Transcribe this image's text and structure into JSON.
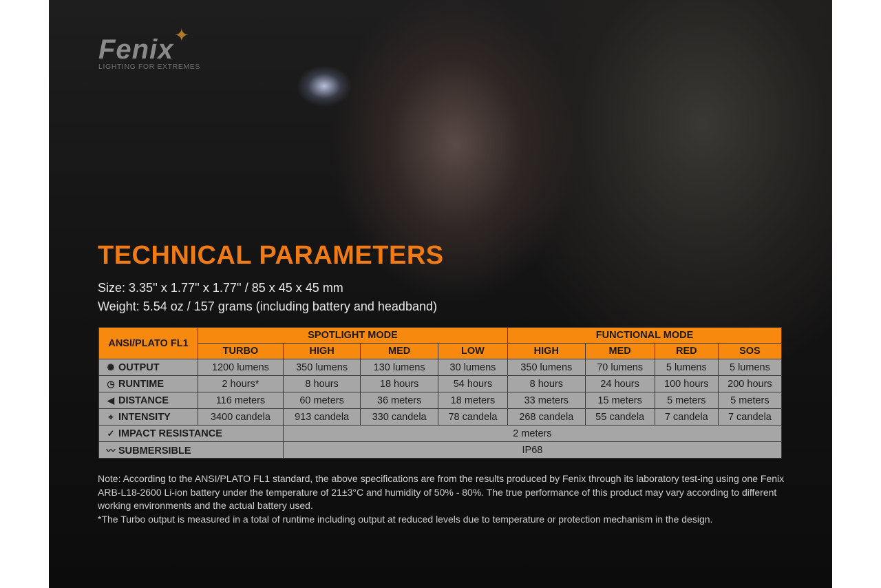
{
  "logo": {
    "brand": "Fenix",
    "tagline": "LIGHTING FOR EXTREMES"
  },
  "title": "TECHNICAL PARAMETERS",
  "size": "Size: 3.35'' x 1.77'' x 1.77'' / 85 x 45 x 45 mm",
  "weight": "Weight: 5.54 oz / 157 grams (including battery and headband)",
  "table": {
    "corner": "ANSI/PLATO FL1",
    "groups": [
      "SPOTLIGHT MODE",
      "FUNCTIONAL MODE"
    ],
    "modes": [
      "TURBO",
      "HIGH",
      "MED",
      "LOW",
      "HIGH",
      "MED",
      "RED",
      "SOS"
    ],
    "rows": [
      {
        "icon": "light-rays-icon",
        "label": "OUTPUT",
        "values": [
          "1200 lumens",
          "350 lumens",
          "130 lumens",
          "30 lumens",
          "350 lumens",
          "70 lumens",
          "5 lumens",
          "5 lumens"
        ]
      },
      {
        "icon": "clock-icon",
        "label": "RUNTIME",
        "values": [
          "2 hours*",
          "8 hours",
          "18 hours",
          "54 hours",
          "8 hours",
          "24 hours",
          "100 hours",
          "200 hours"
        ]
      },
      {
        "icon": "beam-distance-icon",
        "label": "DISTANCE",
        "values": [
          "116 meters",
          "60 meters",
          "36 meters",
          "18 meters",
          "33 meters",
          "15 meters",
          "5 meters",
          "5 meters"
        ]
      },
      {
        "icon": "crosshair-icon",
        "label": "INTENSITY",
        "values": [
          "3400 candela",
          "913 candela",
          "330 candela",
          "78 candela",
          "268 candela",
          "55 candela",
          "7 candela",
          "7 candela"
        ]
      }
    ],
    "impact": {
      "icon": "impact-check-icon",
      "label": "IMPACT RESISTANCE",
      "value": "2 meters"
    },
    "submersible": {
      "icon": "water-drop-icon",
      "label": "SUBMERSIBLE",
      "value": "IP68"
    }
  },
  "note": "Note: According to the ANSI/PLATO FL1 standard, the above specifications are from the results produced by Fenix through its laboratory test-ing using one Fenix ARB-L18-2600 Li-ion battery under the temperature of 21±3°C and humidity of 50% - 80%. The true performance of this product may vary according to different working environments and the actual battery used.",
  "footnote": "*The Turbo output is measured in a total of runtime including output at reduced levels due to temperature or protection mechanism in the design.",
  "colors": {
    "accent": "#f07a14",
    "header": "#f7890f",
    "cell": "#a6a6a6"
  }
}
